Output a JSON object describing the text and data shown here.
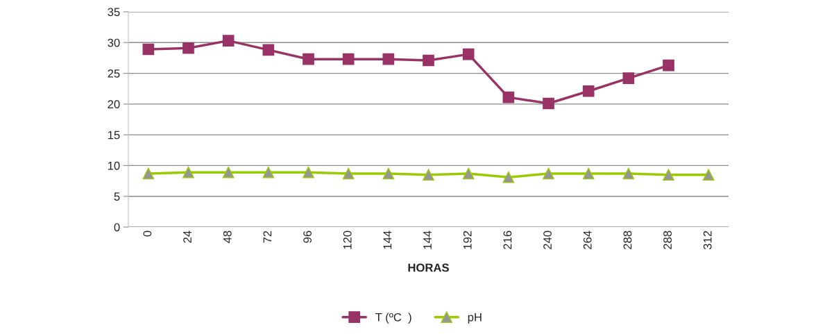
{
  "chart_data": {
    "type": "line",
    "xlabel": "HORAS",
    "categories": [
      "0",
      "24",
      "48",
      "72",
      "96",
      "120",
      "144",
      "144",
      "192",
      "216",
      "240",
      "264",
      "288",
      "288",
      "312"
    ],
    "series": [
      {
        "name": "T (ºC  )",
        "color": "#993366",
        "marker": "square",
        "values": [
          28.9,
          29.1,
          30.3,
          28.8,
          27.3,
          27.3,
          27.3,
          27.1,
          28.1,
          21.1,
          20.1,
          22.1,
          24.2,
          26.3,
          null
        ]
      },
      {
        "name": "pH",
        "color": "#99cc00",
        "marker": "triangle",
        "values": [
          8.7,
          8.9,
          8.9,
          8.9,
          8.9,
          8.7,
          8.7,
          8.5,
          8.7,
          8.1,
          8.7,
          8.7,
          8.7,
          8.5,
          8.5
        ]
      }
    ],
    "ylim": [
      0,
      35
    ],
    "yticks": [
      0,
      5,
      10,
      15,
      20,
      25,
      30,
      35
    ],
    "grid": "y",
    "legend": "bottom"
  }
}
